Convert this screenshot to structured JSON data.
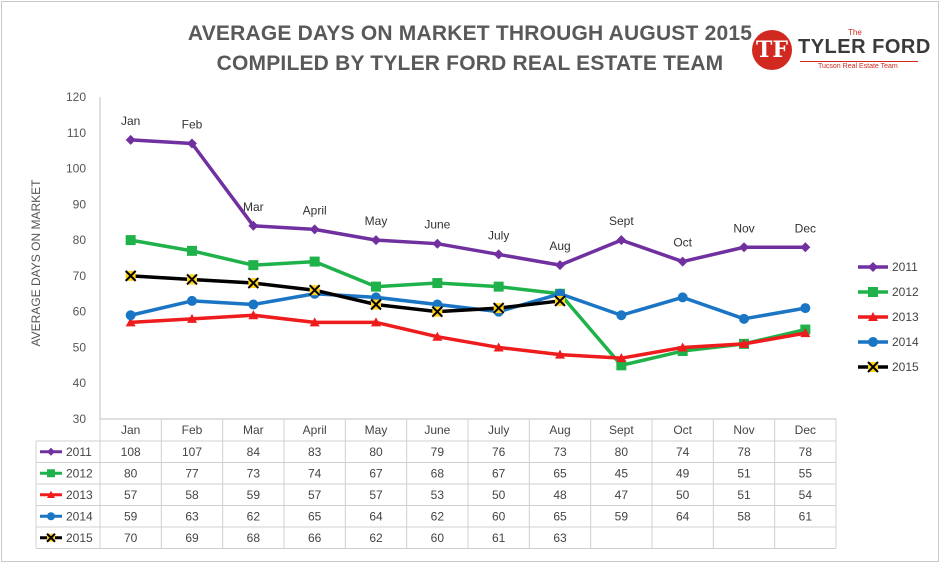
{
  "header": {
    "title_line1": "AVERAGE DAYS ON MARKET THROUGH AUGUST 2015",
    "title_line2": "COMPILED BY TYLER FORD REAL ESTATE TEAM"
  },
  "logo": {
    "monogram": "TF",
    "the": "The",
    "name": "TYLER FORD",
    "tagline": "Tucson Real Estate Team"
  },
  "chart_data": {
    "type": "line",
    "title": "AVERAGE DAYS ON MARKET THROUGH AUGUST 2015",
    "subtitle": "COMPILED BY TYLER FORD REAL ESTATE TEAM",
    "xlabel": "",
    "ylabel": "AVERAGE DAYS ON MARKET",
    "ylim": [
      30,
      120
    ],
    "yticks": [
      30,
      40,
      50,
      60,
      70,
      80,
      90,
      100,
      110,
      120
    ],
    "grid": false,
    "legend": "right",
    "has_data_table": true,
    "categories": [
      "Jan",
      "Feb",
      "Mar",
      "April",
      "May",
      "June",
      "July",
      "Aug",
      "Sept",
      "Oct",
      "Nov",
      "Dec"
    ],
    "annotations": [
      "Jan",
      "Feb",
      "Mar",
      "April",
      "May",
      "June",
      "July",
      "Aug",
      "Sept",
      "Oct",
      "Nov",
      "Dec"
    ],
    "series": [
      {
        "name": "2011",
        "color": "#7030a0",
        "marker": "diamond",
        "values": [
          108,
          107,
          84,
          83,
          80,
          79,
          76,
          73,
          80,
          74,
          78,
          78
        ]
      },
      {
        "name": "2012",
        "color": "#1fb24a",
        "marker": "square",
        "values": [
          80,
          77,
          73,
          74,
          67,
          68,
          67,
          65,
          45,
          49,
          51,
          55
        ]
      },
      {
        "name": "2013",
        "color": "#ee1c1c",
        "marker": "triangle",
        "values": [
          57,
          58,
          59,
          57,
          57,
          53,
          50,
          48,
          47,
          50,
          51,
          54
        ]
      },
      {
        "name": "2014",
        "color": "#1a75c4",
        "marker": "circle",
        "values": [
          59,
          63,
          62,
          65,
          64,
          62,
          60,
          65,
          59,
          64,
          58,
          61
        ]
      },
      {
        "name": "2015",
        "color": "#000000",
        "marker": "x",
        "marker_fill": "#ffd21f",
        "values": [
          70,
          69,
          68,
          66,
          62,
          60,
          61,
          63,
          null,
          null,
          null,
          null
        ]
      }
    ]
  }
}
